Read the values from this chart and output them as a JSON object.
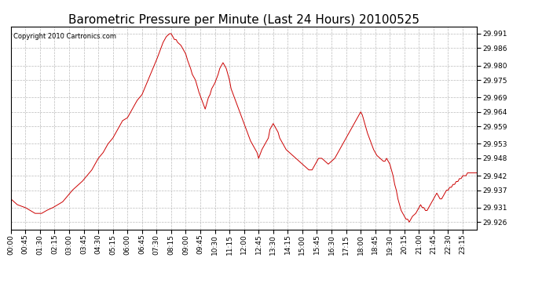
{
  "title": "Barometric Pressure per Minute (Last 24 Hours) 20100525",
  "copyright": "Copyright 2010 Cartronics.com",
  "line_color": "#cc0000",
  "background_color": "#ffffff",
  "grid_color": "#bbbbbb",
  "yticks": [
    29.926,
    29.931,
    29.937,
    29.942,
    29.948,
    29.953,
    29.959,
    29.964,
    29.969,
    29.975,
    29.98,
    29.986,
    29.991
  ],
  "ylim": [
    29.9235,
    29.9935
  ],
  "xtick_labels": [
    "00:00",
    "00:45",
    "01:30",
    "02:15",
    "03:00",
    "03:45",
    "04:30",
    "05:15",
    "06:00",
    "06:45",
    "07:30",
    "08:15",
    "09:00",
    "09:45",
    "10:30",
    "11:15",
    "12:00",
    "12:45",
    "13:30",
    "14:15",
    "15:00",
    "15:45",
    "16:30",
    "17:15",
    "18:00",
    "18:45",
    "19:30",
    "20:15",
    "21:00",
    "21:45",
    "22:30",
    "23:15"
  ],
  "title_fontsize": 11,
  "tick_fontsize": 6.5,
  "copyright_fontsize": 6
}
